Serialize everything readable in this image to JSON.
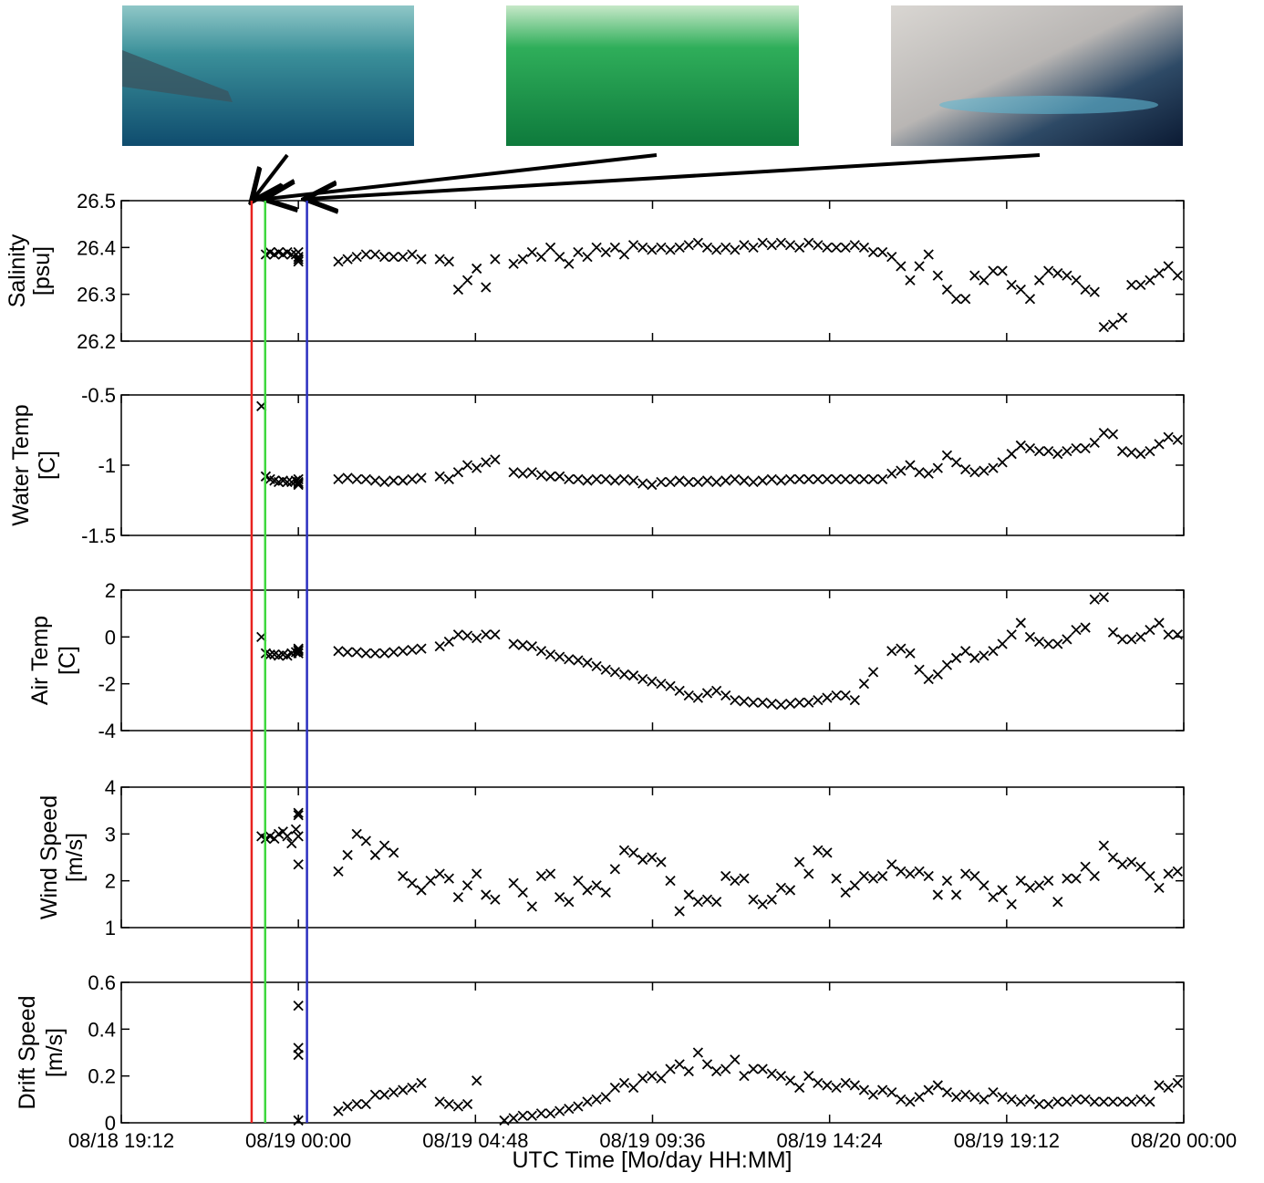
{
  "chart_data": {
    "type": "scatter",
    "xlabel": "UTC Time [Mo/day HH:MM]",
    "xlim": [
      "08/18 19:12",
      "08/20 00:00"
    ],
    "xticks": [
      "08/18 19:12",
      "08/19 00:00",
      "08/19 04:48",
      "08/19 09:36",
      "08/19 14:24",
      "08/19 19:12",
      "08/20 00:00"
    ],
    "color": "#000000",
    "markers": [
      {
        "x": "08/18 22:44",
        "color": "#e8221f"
      },
      {
        "x": "08/18 23:06",
        "color": "#3fd83f"
      },
      {
        "x": "08/19 00:14",
        "color": "#2b2fc0"
      }
    ],
    "x": [
      "08/18 23:00",
      "08/18 23:07",
      "08/18 23:14",
      "08/18 23:21",
      "08/18 23:28",
      "08/18 23:35",
      "08/18 23:42",
      "08/18 23:49",
      "08/18 23:56",
      "08/19 00:00",
      "08/19 00:00",
      "08/19 00:00",
      "08/19 00:00",
      "08/19 01:05",
      "08/19 01:20",
      "08/19 01:35",
      "08/19 01:50",
      "08/19 02:05",
      "08/19 02:20",
      "08/19 02:35",
      "08/19 02:50",
      "08/19 03:05",
      "08/19 03:20",
      "08/19 03:35",
      "08/19 03:50",
      "08/19 04:05",
      "08/19 04:20",
      "08/19 04:35",
      "08/19 04:50",
      "08/19 05:05",
      "08/19 05:20",
      "08/19 05:35",
      "08/19 05:50",
      "08/19 06:05",
      "08/19 06:20",
      "08/19 06:35",
      "08/19 06:50",
      "08/19 07:05",
      "08/19 07:20",
      "08/19 07:35",
      "08/19 07:50",
      "08/19 08:05",
      "08/19 08:20",
      "08/19 08:35",
      "08/19 08:50",
      "08/19 09:05",
      "08/19 09:20",
      "08/19 09:35",
      "08/19 09:50",
      "08/19 10:05",
      "08/19 10:20",
      "08/19 10:35",
      "08/19 10:50",
      "08/19 11:05",
      "08/19 11:20",
      "08/19 11:35",
      "08/19 11:50",
      "08/19 12:05",
      "08/19 12:20",
      "08/19 12:35",
      "08/19 12:50",
      "08/19 13:05",
      "08/19 13:20",
      "08/19 13:35",
      "08/19 13:50",
      "08/19 14:05",
      "08/19 14:20",
      "08/19 14:35",
      "08/19 14:50",
      "08/19 15:05",
      "08/19 15:20",
      "08/19 15:35",
      "08/19 15:50",
      "08/19 16:05",
      "08/19 16:20",
      "08/19 16:35",
      "08/19 16:50",
      "08/19 17:05",
      "08/19 17:20",
      "08/19 17:35",
      "08/19 17:50",
      "08/19 18:05",
      "08/19 18:20",
      "08/19 18:35",
      "08/19 18:50",
      "08/19 19:05",
      "08/19 19:20",
      "08/19 19:35",
      "08/19 19:50",
      "08/19 20:05",
      "08/19 20:20",
      "08/19 20:35",
      "08/19 20:50",
      "08/19 21:05",
      "08/19 21:20",
      "08/19 21:35",
      "08/19 21:50",
      "08/19 22:05",
      "08/19 22:20",
      "08/19 22:35",
      "08/19 22:50",
      "08/19 23:05",
      "08/19 23:20",
      "08/19 23:35",
      "08/19 23:50"
    ],
    "panels": [
      {
        "ylabel": [
          "Salinity",
          "[psu]"
        ],
        "ylim": [
          26.2,
          26.5
        ],
        "yticks": [
          26.2,
          26.3,
          26.4,
          26.5
        ],
        "values": [
          null,
          26.385,
          26.39,
          26.385,
          26.39,
          26.385,
          26.39,
          26.385,
          26.385,
          26.38,
          26.37,
          26.39,
          26.375,
          26.37,
          26.375,
          26.38,
          26.385,
          26.385,
          26.38,
          26.38,
          26.38,
          26.385,
          26.375,
          null,
          26.375,
          26.37,
          26.31,
          26.33,
          26.355,
          26.315,
          26.375,
          null,
          26.365,
          26.375,
          26.39,
          26.38,
          26.4,
          26.38,
          26.365,
          26.39,
          26.38,
          26.4,
          26.39,
          26.4,
          26.385,
          26.405,
          26.4,
          26.395,
          26.4,
          26.395,
          26.4,
          26.405,
          26.41,
          26.4,
          26.395,
          26.4,
          26.395,
          26.405,
          26.4,
          26.41,
          26.405,
          26.41,
          26.405,
          26.4,
          26.41,
          26.405,
          26.4,
          26.4,
          26.4,
          26.405,
          26.4,
          26.39,
          26.39,
          26.38,
          26.36,
          26.33,
          26.36,
          26.385,
          26.34,
          26.31,
          26.29,
          26.29,
          26.34,
          26.33,
          26.35,
          26.35,
          26.32,
          26.31,
          26.29,
          26.33,
          26.35,
          26.345,
          26.34,
          26.33,
          26.31,
          26.305,
          26.23,
          26.235,
          26.25,
          26.32,
          26.32,
          26.33,
          26.345,
          26.36,
          26.34
        ]
      },
      {
        "ylabel": [
          "Water Temp",
          "[C]"
        ],
        "ylim": [
          -1.5,
          -0.5
        ],
        "yticks": [
          -1.5,
          -1,
          -0.5
        ],
        "values": [
          -0.58,
          -1.08,
          -1.1,
          -1.11,
          -1.12,
          -1.11,
          -1.12,
          -1.12,
          -1.11,
          -1.1,
          -1.13,
          -1.14,
          -1.12,
          -1.1,
          -1.09,
          -1.1,
          -1.1,
          -1.11,
          -1.12,
          -1.11,
          -1.11,
          -1.1,
          -1.09,
          null,
          -1.08,
          -1.1,
          -1.05,
          -1.0,
          -1.02,
          -0.98,
          -0.96,
          null,
          -1.05,
          -1.06,
          -1.05,
          -1.07,
          -1.08,
          -1.08,
          -1.1,
          -1.1,
          -1.11,
          -1.1,
          -1.1,
          -1.11,
          -1.1,
          -1.11,
          -1.13,
          -1.14,
          -1.12,
          -1.12,
          -1.11,
          -1.12,
          -1.12,
          -1.11,
          -1.12,
          -1.11,
          -1.1,
          -1.11,
          -1.12,
          -1.11,
          -1.1,
          -1.11,
          -1.1,
          -1.1,
          -1.1,
          -1.1,
          -1.1,
          -1.1,
          -1.1,
          -1.1,
          -1.1,
          -1.1,
          -1.1,
          -1.06,
          -1.04,
          -1.0,
          -1.05,
          -1.06,
          -1.02,
          -0.93,
          -0.98,
          -1.03,
          -1.05,
          -1.04,
          -1.02,
          -0.98,
          -0.92,
          -0.86,
          -0.88,
          -0.9,
          -0.9,
          -0.92,
          -0.9,
          -0.88,
          -0.88,
          -0.84,
          -0.77,
          -0.78,
          -0.9,
          -0.91,
          -0.92,
          -0.9,
          -0.85,
          -0.8,
          -0.82
        ]
      },
      {
        "ylabel": [
          "Air Temp",
          "[C]"
        ],
        "ylim": [
          -4,
          2
        ],
        "yticks": [
          -4,
          -2,
          0,
          2
        ],
        "values": [
          0,
          -0.7,
          -0.75,
          -0.75,
          -0.8,
          -0.75,
          -0.8,
          -0.7,
          -0.65,
          -0.5,
          -0.6,
          -0.7,
          -0.55,
          -0.6,
          -0.65,
          -0.65,
          -0.7,
          -0.7,
          -0.7,
          -0.65,
          -0.6,
          -0.55,
          -0.5,
          null,
          -0.4,
          -0.2,
          0.1,
          0.05,
          -0.05,
          0.1,
          0.1,
          null,
          -0.3,
          -0.35,
          -0.4,
          -0.6,
          -0.75,
          -0.85,
          -0.95,
          -1.0,
          -1.1,
          -1.25,
          -1.4,
          -1.5,
          -1.6,
          -1.65,
          -1.8,
          -1.9,
          -2.0,
          -2.1,
          -2.3,
          -2.5,
          -2.6,
          -2.4,
          -2.3,
          -2.5,
          -2.7,
          -2.75,
          -2.8,
          -2.8,
          -2.85,
          -2.9,
          -2.85,
          -2.8,
          -2.8,
          -2.7,
          -2.6,
          -2.5,
          -2.5,
          -2.7,
          -2.0,
          -1.5,
          null,
          -0.6,
          -0.5,
          -0.7,
          -1.4,
          -1.8,
          -1.6,
          -1.2,
          -0.9,
          -0.6,
          -0.9,
          -0.8,
          -0.6,
          -0.3,
          0.1,
          0.6,
          0.0,
          -0.2,
          -0.3,
          -0.3,
          -0.1,
          0.3,
          0.4,
          1.6,
          1.7,
          0.2,
          -0.1,
          -0.1,
          0.0,
          0.3,
          0.6,
          0.1,
          0.1
        ]
      },
      {
        "ylabel": [
          "Wind Speed",
          "[m/s]"
        ],
        "ylim": [
          1,
          4
        ],
        "yticks": [
          1,
          2,
          3,
          4
        ],
        "values": [
          2.95,
          2.9,
          2.95,
          2.9,
          3.0,
          3.05,
          2.95,
          2.8,
          3.1,
          3.45,
          3.4,
          2.95,
          2.35,
          2.2,
          2.55,
          3.0,
          2.85,
          2.55,
          2.75,
          2.6,
          2.1,
          1.95,
          1.8,
          2.0,
          2.15,
          2.05,
          1.65,
          1.9,
          2.15,
          1.7,
          1.6,
          null,
          1.95,
          1.75,
          1.45,
          2.1,
          2.15,
          1.65,
          1.55,
          2.0,
          1.8,
          1.9,
          1.75,
          2.25,
          2.65,
          2.6,
          2.45,
          2.5,
          2.4,
          2.0,
          1.35,
          1.7,
          1.55,
          1.6,
          1.55,
          2.1,
          2.0,
          2.05,
          1.6,
          1.5,
          1.6,
          1.85,
          1.8,
          2.4,
          2.15,
          2.65,
          2.6,
          2.05,
          1.75,
          1.9,
          2.1,
          2.05,
          2.1,
          2.35,
          2.2,
          2.15,
          2.2,
          2.1,
          1.7,
          2.0,
          1.7,
          2.15,
          2.1,
          1.9,
          1.65,
          1.8,
          1.5,
          2.0,
          1.85,
          1.9,
          2.0,
          1.55,
          2.05,
          2.05,
          2.3,
          2.1,
          2.75,
          2.5,
          2.35,
          2.4,
          2.3,
          2.1,
          1.85,
          2.15,
          2.2
        ]
      },
      {
        "ylabel": [
          "Drift Speed",
          "[m/s]"
        ],
        "ylim": [
          0,
          0.6
        ],
        "yticks": [
          0,
          0.2,
          0.4,
          0.6
        ],
        "values": [
          null,
          null,
          null,
          null,
          null,
          null,
          null,
          null,
          null,
          0.5,
          0.32,
          0.29,
          0.01,
          0.05,
          0.07,
          0.08,
          0.08,
          0.12,
          0.12,
          0.13,
          0.14,
          0.15,
          0.17,
          null,
          0.09,
          0.08,
          0.07,
          0.08,
          0.18,
          null,
          null,
          0.01,
          0.02,
          0.03,
          0.03,
          0.04,
          0.04,
          0.05,
          0.06,
          0.07,
          0.09,
          0.1,
          0.11,
          0.15,
          0.17,
          0.15,
          0.19,
          0.2,
          0.19,
          0.23,
          0.25,
          0.22,
          0.3,
          0.25,
          0.22,
          0.23,
          0.27,
          0.2,
          0.23,
          0.23,
          0.21,
          0.2,
          0.18,
          0.15,
          0.2,
          0.17,
          0.16,
          0.15,
          0.17,
          0.16,
          0.14,
          0.12,
          0.14,
          0.13,
          0.1,
          0.09,
          0.11,
          0.14,
          0.16,
          0.13,
          0.11,
          0.12,
          0.11,
          0.1,
          0.13,
          0.11,
          0.1,
          0.09,
          0.1,
          0.08,
          0.08,
          0.09,
          0.09,
          0.1,
          0.1,
          0.09,
          0.09,
          0.09,
          0.09,
          0.09,
          0.1,
          0.09,
          0.16,
          0.15,
          0.17
        ]
      }
    ]
  }
}
